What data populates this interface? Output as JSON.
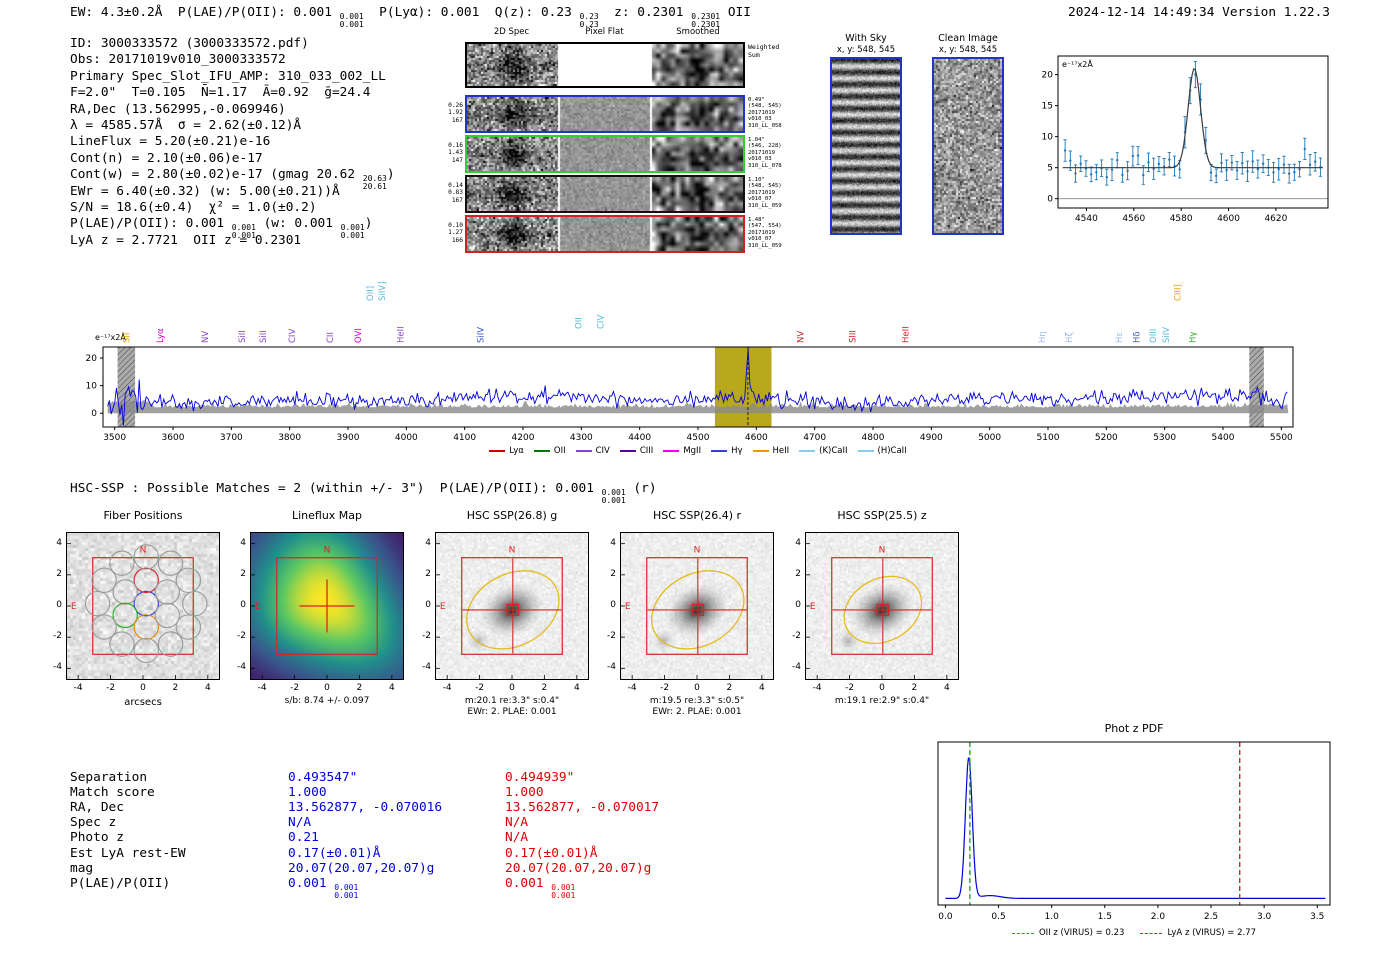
{
  "meta": {
    "timestamp_version": "2024-12-14 14:49:34  Version 1.22.3"
  },
  "topline": {
    "parts": [
      {
        "text": "EW: 4.3±0.2Å  P(LAE)/P(OII): 0.001 ",
        "stack": [
          "0.001",
          "0.001"
        ]
      },
      {
        "text": "  P(Lyα): 0.001  Q(z): 0.23 ",
        "stack": [
          "0.23",
          "0.23"
        ]
      },
      {
        "text": "  z: 0.2301 ",
        "stack": [
          "0.2301",
          "0.2301"
        ]
      },
      {
        "text": " OII"
      }
    ]
  },
  "info": {
    "lines": [
      {
        "parts": [
          {
            "text": "ID: 3000333572 (3000333572.pdf)"
          }
        ]
      },
      {
        "parts": [
          {
            "text": "Obs: 20171019v010_3000333572"
          }
        ]
      },
      {
        "parts": [
          {
            "text": "Primary Spec_Slot_IFU_AMP: 310_033_002_LL"
          }
        ]
      },
      {
        "parts": [
          {
            "text": "F=2.0\"  T=0.105  N̄=1.17  Ā=0.92  ḡ=24.4"
          }
        ]
      },
      {
        "parts": [
          {
            "text": "RA,Dec (13.562995,-0.069946)"
          }
        ]
      },
      {
        "parts": [
          {
            "text": "λ = 4585.57Å  σ = 2.62(±0.12)Å"
          }
        ]
      },
      {
        "parts": [
          {
            "text": "LineFlux = 5.20(±0.21)e-16"
          }
        ]
      },
      {
        "parts": [
          {
            "text": "Cont(n) = 2.10(±0.06)e-17"
          }
        ]
      },
      {
        "parts": [
          {
            "text": "Cont(w) = 2.80(±0.02)e-17 (gmag 20.62 ",
            "stack": [
              "20.63",
              "20.61"
            ]
          },
          {
            "text": ")"
          }
        ]
      },
      {
        "parts": [
          {
            "text": "EWr = 6.40(±0.32) (w: 5.00(±0.21))Å"
          }
        ]
      },
      {
        "parts": [
          {
            "text": "S/N = 18.6(±0.4)  χ² = 1.0(±0.2)"
          }
        ]
      },
      {
        "parts": [
          {
            "text": "P(LAE)/P(OII): 0.001 ",
            "stack": [
              "0.001",
              "0.001"
            ]
          },
          {
            "text": " (w: 0.001 ",
            "stack": [
              "0.001",
              "0.001"
            ]
          },
          {
            "text": ")"
          }
        ]
      },
      {
        "parts": [
          {
            "text": "LyA z = 2.7721  OII z = 0.2301"
          }
        ]
      }
    ]
  },
  "spec2d": {
    "col_titles": [
      "2D Spec",
      "Pixel Flat",
      "Smoothed"
    ],
    "rows": [
      {
        "top": true,
        "left": [],
        "right": [
          "Weighted",
          "Sum"
        ],
        "border": "#000000"
      },
      {
        "left": [
          "0.26",
          "1.92",
          "167"
        ],
        "right": [
          "0.49\"",
          "(548, 545)",
          "20171019",
          "v010_03",
          "310_LL_058"
        ],
        "border": "#2233cc"
      },
      {
        "left": [
          "0.16",
          "1.43",
          "147"
        ],
        "right": [
          "1.04\"",
          "(546, 228)",
          "20171019",
          "v010_03",
          "310_LL_078"
        ],
        "border": "#33cc33"
      },
      {
        "left": [
          "0.14",
          "0.83",
          "167"
        ],
        "right": [
          "1.10\"",
          "(548, 545)",
          "20171019",
          "v010_07",
          "310_LL_059"
        ],
        "border": "#111111"
      },
      {
        "left": [
          "0.10",
          "1.27",
          "166"
        ],
        "right": [
          "1.48\"",
          "(547, 554)",
          "20171019",
          "v010_07",
          "310_LL_059"
        ],
        "border": "#cc2222"
      }
    ]
  },
  "withsky": {
    "title": "With Sky",
    "subtitle": "x, y: 548, 545"
  },
  "clean": {
    "title": "Clean Image",
    "subtitle": "x, y: 548, 545"
  },
  "hsc_header": {
    "parts": [
      {
        "text": "HSC-SSP : Possible Matches = 2 (within +/- 3\")  P(LAE)/P(OII): 0.001 ",
        "stack": [
          "0.001",
          "0.001"
        ]
      },
      {
        "text": " (r)"
      }
    ]
  },
  "cutouts": {
    "yticks": [
      4,
      2,
      0,
      -2,
      -4
    ],
    "xticks": [
      -4,
      -2,
      0,
      2,
      4
    ],
    "panels": [
      {
        "id": "fiber",
        "title": "Fiber Positions",
        "type": "fibers",
        "xlabel": "arcsecs",
        "captions": []
      },
      {
        "id": "lineflux",
        "title": "Lineflux Map",
        "type": "heatmap",
        "captions": [
          "s/b: 8.74 +/- 0.097"
        ]
      },
      {
        "id": "hsc-g",
        "title": "HSC SSP(26.8) g",
        "type": "galaxy",
        "ellipse": {
          "rx": 3.0,
          "ry": 2.3,
          "angle": -28
        },
        "captions": [
          "m:20.1 re:3.3\" s:0.4\"",
          "EWr: 2. PLAE: 0.001"
        ]
      },
      {
        "id": "hsc-r",
        "title": "HSC SSP(26.4) r",
        "type": "galaxy",
        "ellipse": {
          "rx": 3.0,
          "ry": 2.3,
          "angle": -28
        },
        "captions": [
          "m:19.5 re:3.3\" s:0.5\"",
          "EWr: 2. PLAE: 0.001"
        ]
      },
      {
        "id": "hsc-z",
        "title": "HSC SSP(25.5) z",
        "type": "galaxy",
        "ellipse": {
          "rx": 2.5,
          "ry": 2.0,
          "angle": -28
        },
        "captions": [
          "m:19.1 re:2.9\" s:0.4\""
        ]
      }
    ]
  },
  "match_table": {
    "labels": [
      "Separation",
      "Match score",
      "RA, Dec",
      "Spec z",
      "Photo z",
      "Est LyA rest-EW",
      "mag",
      "P(LAE)/P(OII)"
    ],
    "col1_color": "#0000dd",
    "col2_color": "#dd0000",
    "col1": [
      "0.493547\"",
      "1.000",
      "13.562877, -0.070016",
      "N/A",
      "0.21",
      "0.17(±0.01)Å",
      "20.07(20.07,20.07)g",
      {
        "text": "0.001 ",
        "stack": [
          "0.001",
          "0.001"
        ]
      }
    ],
    "col2": [
      "0.494939\"",
      "1.000",
      "13.562877, -0.070017",
      "N/A",
      "N/A",
      "0.17(±0.01)Å",
      "20.07(20.07,20.07)g",
      {
        "text": "0.001 ",
        "stack": [
          "0.001",
          "0.001"
        ]
      }
    ]
  },
  "chart_data": [
    {
      "id": "gauss_fit_inset",
      "type": "scatter",
      "title": "",
      "ylabel": "e⁻¹⁷x2Å",
      "xlim": [
        4528,
        4642
      ],
      "ylim": [
        -1.5,
        23
      ],
      "xticks": [
        4540,
        4560,
        4580,
        4600,
        4620
      ],
      "yticks": [
        0,
        5,
        10,
        15,
        20
      ],
      "series": [
        {
          "name": "observed flux",
          "style": "errorbar",
          "color": "#1f77b4",
          "baseline": 5.0,
          "noise": 1.0,
          "errbar": 1.35
        },
        {
          "name": "gaussian fit",
          "style": "line",
          "color": "#3a3a3a",
          "center": 4585.57,
          "sigma": 2.62,
          "amplitude": 16.0,
          "offset": 5.0
        }
      ]
    },
    {
      "id": "full_spectrum",
      "type": "line",
      "ylabel": "e⁻¹⁷x2Å",
      "xlim": [
        3480,
        5520
      ],
      "ylim": [
        -5,
        24
      ],
      "xticks": [
        3500,
        3600,
        3700,
        3800,
        3900,
        4000,
        4100,
        4200,
        4300,
        4400,
        4500,
        4600,
        4700,
        4800,
        4900,
        5000,
        5100,
        5200,
        5300,
        5400,
        5500
      ],
      "yticks": [
        0,
        10,
        20
      ],
      "highlight_band": {
        "x0": 4529,
        "x1": 4626,
        "color": "#b9a81c"
      },
      "masked_bands": [
        [
          3505,
          3535
        ],
        [
          5445,
          5470
        ]
      ],
      "marker_line": 4585.57,
      "series": [
        {
          "name": "spectrum",
          "color": "#0000dd",
          "baseline": 5.0,
          "noise": 1.8,
          "peak": {
            "center": 4585.57,
            "sigma": 2.62,
            "amplitude": 17.0
          }
        },
        {
          "name": "error",
          "color": "#8a8a8a",
          "baseline": 2.0,
          "noise": 0.8
        }
      ],
      "line_labels": [
        {
          "text": "SII",
          "wave": 3520,
          "color": "#e8a000",
          "level": 0
        },
        {
          "text": "Lyα",
          "wave": 3578,
          "color": "#cc00cc",
          "level": 0
        },
        {
          "text": "NV",
          "wave": 3655,
          "color": "#8844cc",
          "level": 0
        },
        {
          "text": "SiII",
          "wave": 3718,
          "color": "#8844cc",
          "level": 0
        },
        {
          "text": "SiII",
          "wave": 3754,
          "color": "#8844cc",
          "level": 0
        },
        {
          "text": "CIV",
          "wave": 3804,
          "color": "#8844cc",
          "level": 0
        },
        {
          "text": "CII",
          "wave": 3869,
          "color": "#8844cc",
          "level": 0
        },
        {
          "text": "OVI",
          "wave": 3917,
          "color": "#cc00cc",
          "level": 0
        },
        {
          "text": "OII]",
          "wave": 3938,
          "color": "#55bbdd",
          "level": 2
        },
        {
          "text": "SiIV]",
          "wave": 3958,
          "color": "#55bbdd",
          "level": 2
        },
        {
          "text": "HeII",
          "wave": 3990,
          "color": "#8844cc",
          "level": 0
        },
        {
          "text": "SiIV",
          "wave": 4127,
          "color": "#3355cc",
          "level": 0
        },
        {
          "text": "OII",
          "wave": 4295,
          "color": "#55bbdd",
          "level": 1
        },
        {
          "text": "CIV",
          "wave": 4333,
          "color": "#55bbdd",
          "level": 1
        },
        {
          "text": "NV",
          "wave": 4676,
          "color": "#cc2222",
          "level": 0
        },
        {
          "text": "SIII",
          "wave": 4765,
          "color": "#cc2222",
          "level": 0
        },
        {
          "text": "HeII",
          "wave": 4856,
          "color": "#cc2222",
          "level": 0
        },
        {
          "text": "Hη",
          "wave": 5090,
          "color": "#99bbee",
          "level": 0
        },
        {
          "text": "Hζ",
          "wave": 5136,
          "color": "#99bbee",
          "level": 0
        },
        {
          "text": "Hε",
          "wave": 5222,
          "color": "#99bbee",
          "level": 0
        },
        {
          "text": "Hδ",
          "wave": 5252,
          "color": "#3355cc",
          "level": 0
        },
        {
          "text": "OIII",
          "wave": 5280,
          "color": "#55bbdd",
          "level": 0
        },
        {
          "text": "SiIV",
          "wave": 5302,
          "color": "#55bbdd",
          "level": 0
        },
        {
          "text": "CIII]",
          "wave": 5322,
          "color": "#e8a000",
          "level": 2
        },
        {
          "text": "Hγ",
          "wave": 5348,
          "color": "#22aa22",
          "level": 0
        }
      ],
      "legend": [
        {
          "label": "Lyα",
          "color": "#cc0000"
        },
        {
          "label": "OII",
          "color": "#007700"
        },
        {
          "label": "CIV",
          "color": "#8844cc"
        },
        {
          "label": "CIII",
          "color": "#550099"
        },
        {
          "label": "MgII",
          "color": "#ee00ee"
        },
        {
          "label": "Hγ",
          "color": "#3344cc"
        },
        {
          "label": "HeII",
          "color": "#ee9900"
        },
        {
          "label": "(K)CaII",
          "color": "#88ccee"
        },
        {
          "label": "(H)CaII",
          "color": "#88ccee"
        }
      ]
    },
    {
      "id": "photz_pdf",
      "type": "line",
      "title": "Phot z PDF",
      "xlim": [
        -0.07,
        3.62
      ],
      "xticks": [
        0.0,
        0.5,
        1.0,
        1.5,
        2.0,
        2.5,
        3.0,
        3.5
      ],
      "series": [
        {
          "name": "P(z)",
          "color": "#0000dd",
          "peak_center": 0.22,
          "peak_sigma": 0.032,
          "bump_center": 0.42,
          "bump_height": 0.02,
          "baseline": 0.004
        }
      ],
      "vlines": [
        {
          "x": 0.23,
          "color": "#2ca02c",
          "dash": true,
          "label": "OII z (VIRUS) = 0.23"
        },
        {
          "x": 2.77,
          "color": "#d62728",
          "dash": true,
          "label": "LyA z (VIRUS) = 2.77"
        }
      ]
    }
  ]
}
